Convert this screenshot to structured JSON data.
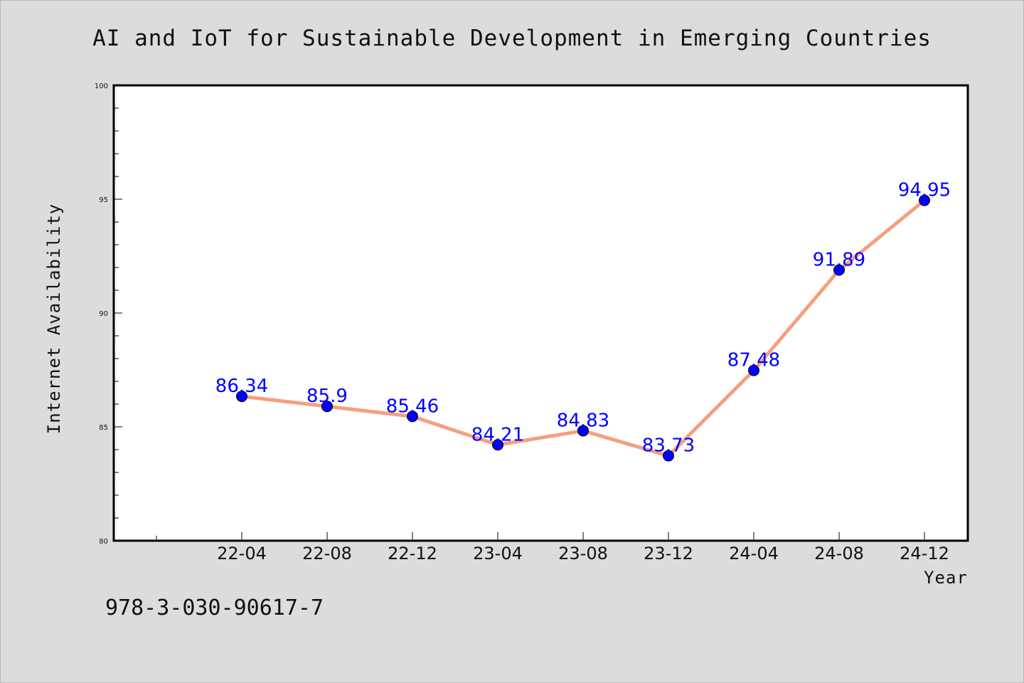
{
  "chart_data": {
    "type": "line",
    "title": "AI and IoT for Sustainable Development in Emerging Countries",
    "xlabel": "Year",
    "ylabel": "Internet Availability",
    "categories": [
      "22-04",
      "22-08",
      "22-12",
      "23-04",
      "23-08",
      "23-12",
      "24-04",
      "24-08",
      "24-12"
    ],
    "series": [
      {
        "values": [
          86.34,
          85.9,
          85.46,
          84.21,
          84.83,
          83.73,
          87.48,
          91.89,
          94.95
        ],
        "data_labels": [
          "86.34",
          "85.9",
          "85.46",
          "84.21",
          "84.83",
          "83.73",
          "87.48",
          "91.89",
          "94.95"
        ],
        "line_color": "#f4a07e",
        "marker_color": "#0000ff"
      }
    ],
    "ylim": [
      80,
      100
    ],
    "yticks": [
      80,
      85,
      90,
      95,
      100
    ],
    "ytick_labels": [
      "80",
      "85",
      "90",
      "95",
      "100"
    ],
    "grid": false,
    "label_color": "#0000ff"
  },
  "footer": {
    "isbn": "978-3-030-90617-7"
  }
}
